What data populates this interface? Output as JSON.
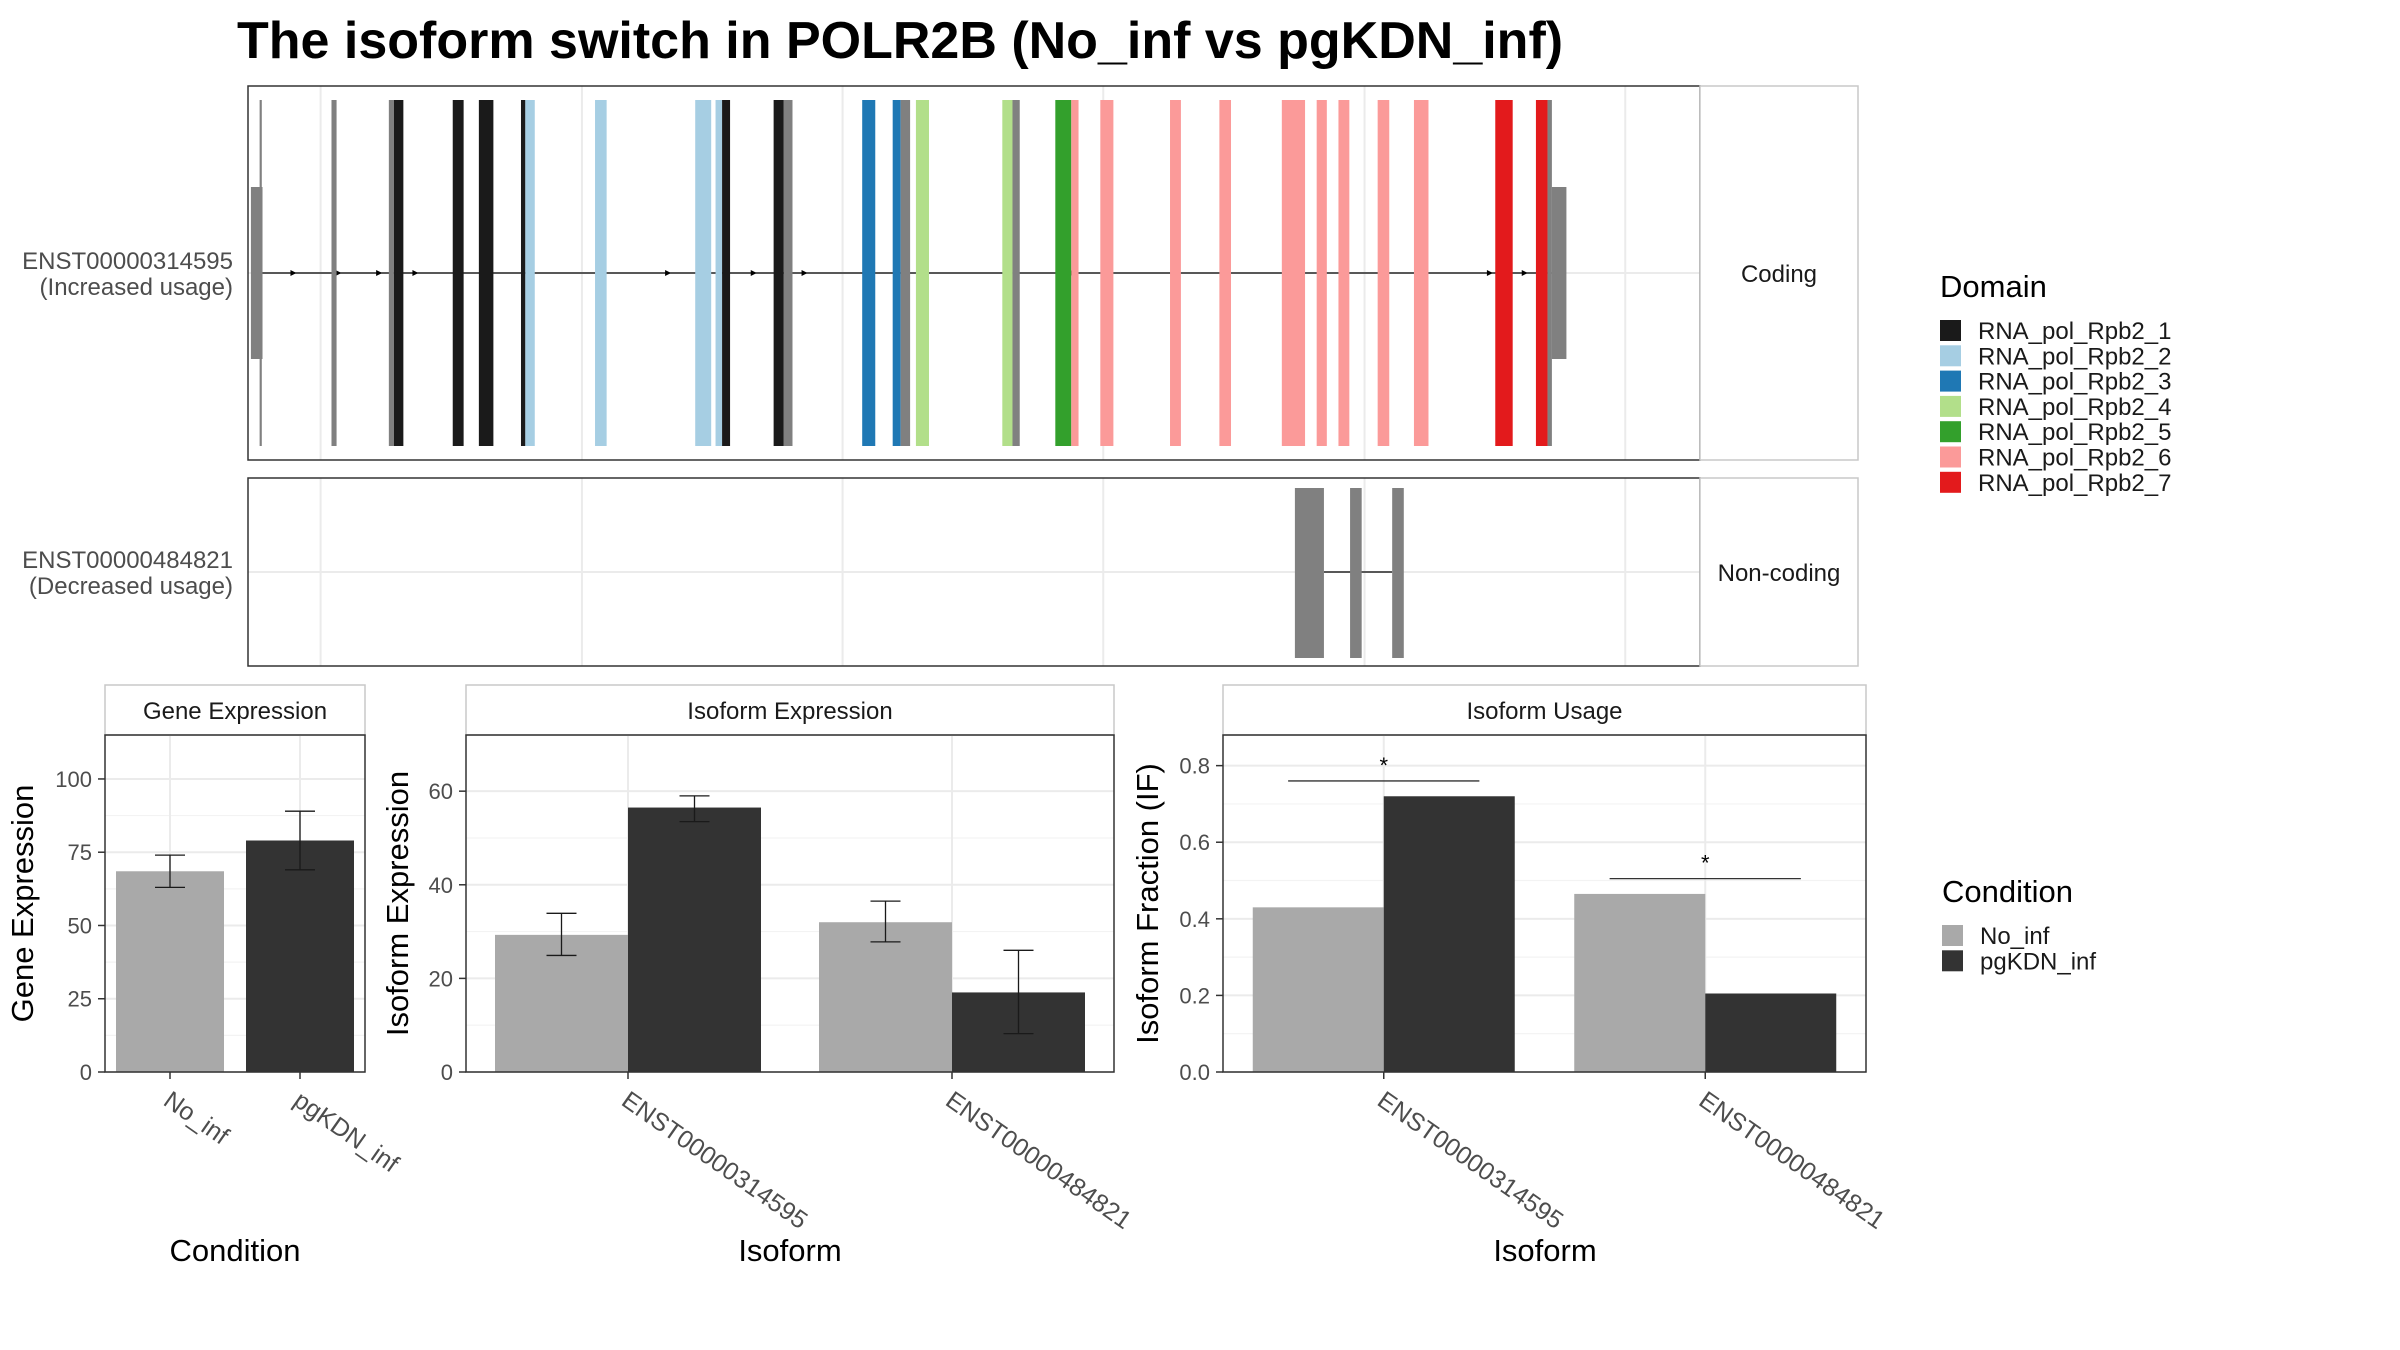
{
  "title": "The isoform switch in POLR2B (No_inf vs pgKDN_inf)",
  "colors": {
    "no_inf": "#a9a9a9",
    "pgkdn_inf": "#333333",
    "grid": "#ebebeb",
    "panel_border": "#333333",
    "strip_border": "#c8c8c8",
    "utr": "#808080",
    "line": "#000000"
  },
  "transcripts": [
    {
      "id": "ENST00000314595",
      "usage": "(Increased usage)",
      "strip": "Coding",
      "features": [
        {
          "x": 0.2,
          "w": 0.8,
          "type": "utr"
        },
        {
          "x": 0.8,
          "w": 0.15,
          "type": "exon",
          "domain": "none"
        },
        {
          "x": 5.75,
          "w": 0.35,
          "type": "exon",
          "domain": "none"
        },
        {
          "x": 9.7,
          "w": 0.35,
          "type": "exon",
          "domain": "none"
        },
        {
          "x": 10.05,
          "w": 0.65,
          "type": "exon",
          "domain": "RNA_pol_Rpb2_1"
        },
        {
          "x": 14.1,
          "w": 0.75,
          "type": "exon",
          "domain": "RNA_pol_Rpb2_1"
        },
        {
          "x": 15.9,
          "w": 1.0,
          "type": "exon",
          "domain": "RNA_pol_Rpb2_1"
        },
        {
          "x": 18.8,
          "w": 0.3,
          "type": "exon",
          "domain": "RNA_pol_Rpb2_1"
        },
        {
          "x": 19.1,
          "w": 0.65,
          "type": "exon",
          "domain": "RNA_pol_Rpb2_2"
        },
        {
          "x": 23.9,
          "w": 0.8,
          "type": "exon",
          "domain": "RNA_pol_Rpb2_2"
        },
        {
          "x": 30.8,
          "w": 1.1,
          "type": "exon",
          "domain": "RNA_pol_Rpb2_2"
        },
        {
          "x": 32.2,
          "w": 0.45,
          "type": "exon",
          "domain": "RNA_pol_Rpb2_2"
        },
        {
          "x": 32.65,
          "w": 0.55,
          "type": "exon",
          "domain": "RNA_pol_Rpb2_1"
        },
        {
          "x": 36.2,
          "w": 0.7,
          "type": "exon",
          "domain": "RNA_pol_Rpb2_1"
        },
        {
          "x": 36.9,
          "w": 0.6,
          "type": "exon",
          "domain": "none"
        },
        {
          "x": 42.3,
          "w": 0.9,
          "type": "exon",
          "domain": "RNA_pol_Rpb2_3"
        },
        {
          "x": 44.4,
          "w": 0.55,
          "type": "exon",
          "domain": "RNA_pol_Rpb2_3"
        },
        {
          "x": 44.95,
          "w": 0.65,
          "type": "exon",
          "domain": "none"
        },
        {
          "x": 46.0,
          "w": 0.9,
          "type": "exon",
          "domain": "RNA_pol_Rpb2_4"
        },
        {
          "x": 51.95,
          "w": 0.7,
          "type": "exon",
          "domain": "RNA_pol_Rpb2_4"
        },
        {
          "x": 52.65,
          "w": 0.5,
          "type": "exon",
          "domain": "none"
        },
        {
          "x": 55.6,
          "w": 1.1,
          "type": "exon",
          "domain": "RNA_pol_Rpb2_5"
        },
        {
          "x": 56.7,
          "w": 0.5,
          "type": "exon",
          "domain": "RNA_pol_Rpb2_6"
        },
        {
          "x": 58.7,
          "w": 0.9,
          "type": "exon",
          "domain": "RNA_pol_Rpb2_6"
        },
        {
          "x": 63.5,
          "w": 0.75,
          "type": "exon",
          "domain": "RNA_pol_Rpb2_6"
        },
        {
          "x": 66.9,
          "w": 0.8,
          "type": "exon",
          "domain": "RNA_pol_Rpb2_6"
        },
        {
          "x": 71.2,
          "w": 1.6,
          "type": "exon",
          "domain": "RNA_pol_Rpb2_6"
        },
        {
          "x": 73.6,
          "w": 0.7,
          "type": "exon",
          "domain": "RNA_pol_Rpb2_6"
        },
        {
          "x": 75.1,
          "w": 0.75,
          "type": "exon",
          "domain": "RNA_pol_Rpb2_6"
        },
        {
          "x": 77.8,
          "w": 0.8,
          "type": "exon",
          "domain": "RNA_pol_Rpb2_6"
        },
        {
          "x": 80.3,
          "w": 1.0,
          "type": "exon",
          "domain": "RNA_pol_Rpb2_6"
        },
        {
          "x": 85.9,
          "w": 1.2,
          "type": "exon",
          "domain": "RNA_pol_Rpb2_7"
        },
        {
          "x": 88.7,
          "w": 0.8,
          "type": "exon",
          "domain": "RNA_pol_Rpb2_7"
        },
        {
          "x": 89.5,
          "w": 0.3,
          "type": "exon",
          "domain": "none"
        },
        {
          "x": 89.8,
          "w": 1.0,
          "type": "utr"
        }
      ],
      "line_range": [
        0.8,
        89.8
      ],
      "arrows": [
        3.2,
        6.3,
        9.1,
        11.6,
        29.0,
        31.2,
        34.9,
        38.4,
        56.9,
        59.4,
        85.6,
        88.0
      ]
    },
    {
      "id": "ENST00000484821",
      "usage": "(Decreased usage)",
      "strip": "Non-coding",
      "features": [
        {
          "x": 72.1,
          "w": 2.0,
          "type": "exon",
          "domain": "none"
        },
        {
          "x": 75.9,
          "w": 0.8,
          "type": "exon",
          "domain": "none"
        },
        {
          "x": 78.8,
          "w": 0.8,
          "type": "exon",
          "domain": "none"
        }
      ],
      "line_range": [
        74.1,
        78.8
      ],
      "arrows": []
    }
  ],
  "domain_legend": {
    "title": "Domain",
    "items": [
      {
        "name": "RNA_pol_Rpb2_1",
        "color": "#1a1a1a"
      },
      {
        "name": "RNA_pol_Rpb2_2",
        "color": "#a6cee3"
      },
      {
        "name": "RNA_pol_Rpb2_3",
        "color": "#1f78b4"
      },
      {
        "name": "RNA_pol_Rpb2_4",
        "color": "#b2df8a"
      },
      {
        "name": "RNA_pol_Rpb2_5",
        "color": "#33a02c"
      },
      {
        "name": "RNA_pol_Rpb2_6",
        "color": "#fb9a99"
      },
      {
        "name": "RNA_pol_Rpb2_7",
        "color": "#e31a1c"
      }
    ]
  },
  "condition_legend": {
    "title": "Condition",
    "items": [
      {
        "name": "No_inf",
        "color": "#a9a9a9"
      },
      {
        "name": "pgKDN_inf",
        "color": "#333333"
      }
    ]
  },
  "chart_data": [
    {
      "type": "bar",
      "title": "Gene Expression",
      "xlabel": "Condition",
      "ylabel": "Gene Expression",
      "ylim": [
        0,
        115
      ],
      "yticks": [
        0,
        25,
        50,
        75,
        100
      ],
      "ytick_labels": [
        "0",
        "25",
        "50",
        "75",
        "100"
      ],
      "categories": [
        "No_inf",
        "pgKDN_inf"
      ],
      "series": [
        {
          "values": [
            68.5,
            79.0
          ],
          "err_low": [
            63.0,
            69.0
          ],
          "err_high": [
            74.0,
            89.0
          ],
          "colors": [
            "No_inf",
            "pgKDN_inf"
          ]
        }
      ]
    },
    {
      "type": "bar",
      "title": "Isoform Expression",
      "xlabel": "Isoform",
      "ylabel": "Isoform Expression",
      "ylim": [
        0,
        72
      ],
      "yticks": [
        0,
        20,
        40,
        60
      ],
      "ytick_labels": [
        "0",
        "20",
        "40",
        "60"
      ],
      "categories": [
        "ENST00000314595",
        "ENST00000484821"
      ],
      "series": [
        {
          "name": "No_inf",
          "values": [
            29.3,
            32.0
          ],
          "err_low": [
            24.9,
            27.8
          ],
          "err_high": [
            33.9,
            36.5
          ]
        },
        {
          "name": "pgKDN_inf",
          "values": [
            56.5,
            17.0
          ],
          "err_low": [
            53.5,
            8.2
          ],
          "err_high": [
            59.0,
            26.0
          ]
        }
      ]
    },
    {
      "type": "bar",
      "title": "Isoform Usage",
      "xlabel": "Isoform",
      "ylabel": "Isoform Fraction (IF)",
      "ylim": [
        0,
        0.88
      ],
      "yticks": [
        0.0,
        0.2,
        0.4,
        0.6,
        0.8
      ],
      "ytick_labels": [
        "0.0",
        "0.2",
        "0.4",
        "0.6",
        "0.8"
      ],
      "categories": [
        "ENST00000314595",
        "ENST00000484821"
      ],
      "series": [
        {
          "name": "No_inf",
          "values": [
            0.43,
            0.465
          ]
        },
        {
          "name": "pgKDN_inf",
          "values": [
            0.72,
            0.205
          ]
        }
      ],
      "significance": [
        {
          "category": "ENST00000314595",
          "y": 0.76,
          "label": "*"
        },
        {
          "category": "ENST00000484821",
          "y": 0.505,
          "label": "*"
        }
      ]
    }
  ]
}
